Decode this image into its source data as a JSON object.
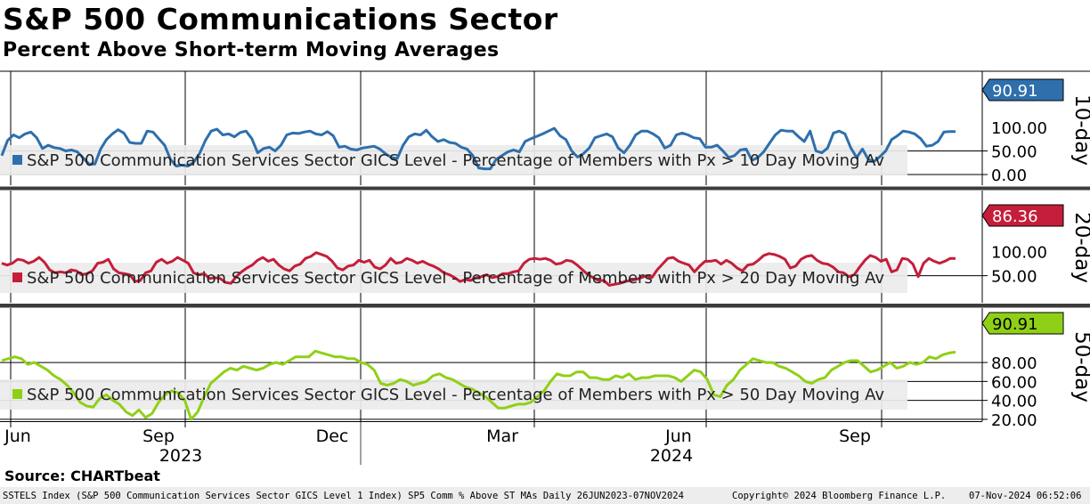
{
  "header": {
    "title": "S&P 500 Communications Sector",
    "subtitle": "Percent Above Short-term Moving Averages"
  },
  "source": "Source: CHARTbeat",
  "footer": {
    "left": "SSTELS Index (S&P 500 Communication Services Sector GICS Level 1 Index) SP5 Comm % Above ST MAs  Daily 26JUN2023-07NOV2024",
    "copyright": "Copyright© 2024 Bloomberg Finance L.P.",
    "timestamp": "07-Nov-2024 06:52:06"
  },
  "chart_data": [
    {
      "type": "line",
      "panel_label": "10-day",
      "series": [
        {
          "name": "S&P 500 Communication Services Sector GICS Level - Percentage of Members with Px > 10 Day Moving Av",
          "color": "#2e6fac",
          "last_value": "90.91",
          "values": [
            40,
            72,
            84,
            78,
            86,
            90,
            78,
            55,
            62,
            57,
            55,
            50,
            52,
            48,
            35,
            22,
            22,
            54,
            74,
            86,
            95,
            88,
            68,
            66,
            66,
            92,
            90,
            76,
            62,
            32,
            18,
            20,
            18,
            26,
            44,
            72,
            92,
            96,
            84,
            86,
            80,
            89,
            92,
            76,
            46,
            55,
            58,
            50,
            62,
            84,
            88,
            87,
            90,
            92,
            86,
            84,
            91,
            82,
            58,
            60,
            54,
            52,
            56,
            58,
            60,
            54,
            44,
            36,
            34,
            62,
            80,
            86,
            84,
            94,
            80,
            70,
            74,
            68,
            66,
            58,
            54,
            40,
            14,
            12,
            12,
            32,
            40,
            48,
            52,
            48,
            70,
            76,
            81,
            86,
            92,
            98,
            82,
            74,
            50,
            37,
            44,
            56,
            78,
            82,
            86,
            80,
            56,
            46,
            62,
            84,
            92,
            92,
            86,
            78,
            56,
            62,
            84,
            88,
            84,
            78,
            76,
            58,
            58,
            62,
            50,
            36,
            40,
            52,
            54,
            30,
            36,
            48,
            66,
            84,
            94,
            92,
            92,
            80,
            70,
            92,
            50,
            46,
            56,
            88,
            92,
            86,
            56,
            36,
            54,
            32,
            28,
            38,
            50,
            74,
            82,
            92,
            90,
            86,
            76,
            60,
            62,
            70,
            90,
            91,
            91
          ]
        }
      ],
      "yticks": [
        "0.00",
        "50.00"
      ],
      "ylim": [
        0,
        100
      ]
    },
    {
      "type": "line",
      "panel_label": "20-day",
      "series": [
        {
          "name": "S&P 500 Communication Services Sector GICS Level - Percentage of Members with Px > 20 Day Moving Av",
          "color": "#c41e3a",
          "last_value": "86.36",
          "values": [
            76,
            72,
            76,
            84,
            82,
            76,
            80,
            88,
            78,
            62,
            56,
            58,
            56,
            62,
            60,
            52,
            54,
            60,
            76,
            78,
            84,
            64,
            56,
            54,
            52,
            38,
            40,
            56,
            60,
            78,
            84,
            76,
            80,
            88,
            82,
            76,
            56,
            52,
            54,
            44,
            46,
            44,
            36,
            34,
            48,
            58,
            66,
            72,
            82,
            88,
            80,
            84,
            72,
            64,
            60,
            70,
            74,
            86,
            90,
            98,
            94,
            90,
            80,
            66,
            62,
            70,
            72,
            82,
            78,
            82,
            68,
            64,
            72,
            86,
            76,
            78,
            86,
            82,
            76,
            80,
            74,
            70,
            64,
            56,
            52,
            46,
            38,
            42,
            40,
            46,
            48,
            52,
            46,
            48,
            54,
            54,
            58,
            60,
            76,
            84,
            86,
            84,
            86,
            82,
            74,
            76,
            82,
            80,
            72,
            62,
            52,
            46,
            40,
            40,
            30,
            32,
            34,
            38,
            40,
            42,
            46,
            50,
            46,
            62,
            74,
            86,
            88,
            80,
            76,
            72,
            58,
            70,
            80,
            80,
            82,
            74,
            82,
            76,
            66,
            60,
            72,
            74,
            82,
            92,
            96,
            94,
            90,
            84,
            66,
            70,
            84,
            90,
            92,
            82,
            76,
            74,
            68,
            58,
            56,
            48,
            52,
            68,
            82,
            92,
            88,
            80,
            84,
            58,
            62,
            86,
            84,
            74,
            48,
            76,
            86,
            80,
            76,
            80,
            86,
            86
          ]
        }
      ],
      "yticks": [
        "50.00",
        "100.00"
      ],
      "ylim": [
        0,
        100
      ]
    },
    {
      "type": "line",
      "panel_label": "50-day",
      "series": [
        {
          "name": "S&P 500 Communication Services Sector GICS Level - Percentage of Members with Px > 50 Day Moving Av",
          "color": "#8fd016",
          "last_value": "90.91",
          "values": [
            82,
            84,
            86,
            84,
            78,
            80,
            76,
            72,
            66,
            62,
            56,
            48,
            38,
            34,
            33,
            42,
            46,
            40,
            36,
            28,
            24,
            30,
            22,
            26,
            38,
            46,
            50,
            48,
            40,
            20,
            28,
            44,
            58,
            64,
            70,
            74,
            72,
            76,
            74,
            72,
            74,
            78,
            80,
            78,
            82,
            86,
            86,
            86,
            92,
            90,
            88,
            86,
            86,
            84,
            84,
            80,
            78,
            72,
            58,
            56,
            58,
            62,
            60,
            56,
            58,
            60,
            66,
            68,
            64,
            62,
            58,
            54,
            52,
            48,
            44,
            38,
            32,
            32,
            34,
            36,
            36,
            38,
            44,
            50,
            60,
            68,
            66,
            66,
            70,
            70,
            64,
            64,
            62,
            62,
            66,
            64,
            68,
            62,
            64,
            64,
            66,
            66,
            66,
            64,
            60,
            66,
            72,
            70,
            62,
            46,
            44,
            56,
            62,
            72,
            78,
            84,
            82,
            80,
            80,
            76,
            74,
            70,
            66,
            60,
            58,
            62,
            64,
            72,
            76,
            80,
            82,
            82,
            76,
            70,
            72,
            76,
            80,
            74,
            76,
            80,
            78,
            80,
            86,
            84,
            88,
            90,
            91
          ]
        }
      ],
      "yticks": [
        "20.00",
        "40.00",
        "60.00",
        "80.00"
      ],
      "ylim": [
        15,
        100
      ]
    }
  ],
  "x_axis": {
    "month_ticks": [
      "Jun",
      "Sep",
      "Dec",
      "Mar",
      "Jun",
      "Sep"
    ],
    "year_labels": [
      "2023",
      "2024"
    ]
  }
}
